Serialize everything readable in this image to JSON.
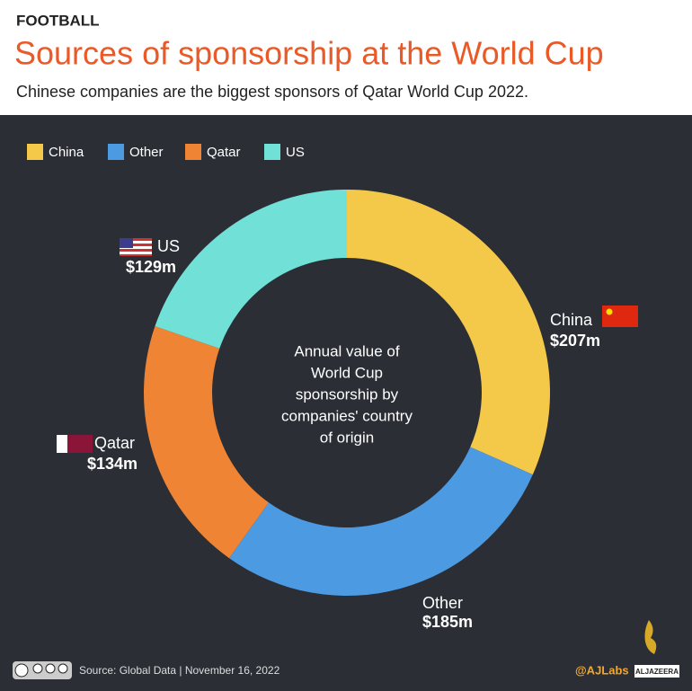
{
  "chart_data": {
    "type": "donut",
    "kicker": "FOOTBALL",
    "title": "Sources of sponsorship at the World Cup",
    "subtitle": "Chinese companies are the biggest sponsors of Qatar World Cup 2022.",
    "categories": [
      "China",
      "Other",
      "Qatar",
      "US"
    ],
    "values": [
      207,
      185,
      134,
      129
    ],
    "value_labels": [
      "$207m",
      "$185m",
      "$134m",
      "$129m"
    ],
    "colors": [
      "#f4c94a",
      "#4c9be2",
      "#ee8434",
      "#71e0d7"
    ],
    "center_text": [
      "Annual value of",
      "World Cup",
      "sponsorship by",
      "companies' country",
      "of origin"
    ],
    "legend": "top-left",
    "source": "Source:  Global Data  |  November 16, 2022",
    "credit": "@AJLabs",
    "brand": "ALJAZEERA"
  }
}
